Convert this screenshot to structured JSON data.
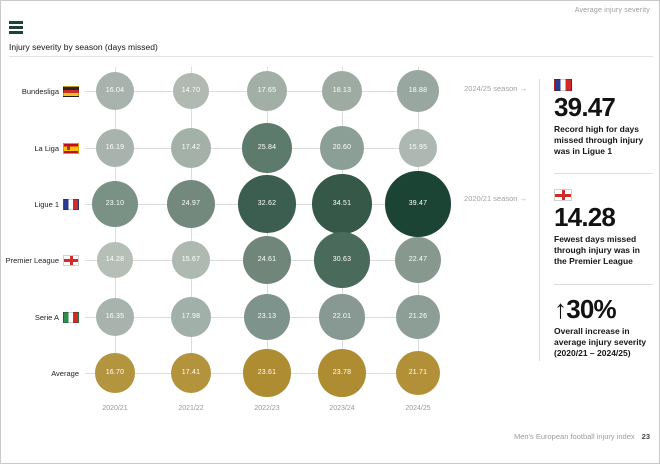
{
  "header": {
    "top_right_label": "Average injury severity",
    "title": "Injury severity by season (days missed)"
  },
  "chart_data": {
    "type": "bubble-matrix",
    "title": "Injury severity by season (days missed)",
    "unit": "days missed",
    "categories": [
      "2020/21",
      "2021/22",
      "2022/23",
      "2023/24",
      "2024/25"
    ],
    "series": [
      {
        "name": "Bundesliga",
        "flag": "de",
        "values": [
          16.04,
          14.7,
          17.65,
          18.13,
          18.88
        ],
        "colors": [
          "#a7b3ac",
          "#b0bab3",
          "#a1afa7",
          "#9daba3",
          "#98a79f"
        ]
      },
      {
        "name": "La Liga",
        "flag": "es",
        "values": [
          16.19,
          17.42,
          25.84,
          20.6,
          15.95
        ],
        "colors": [
          "#a7b3ac",
          "#a3b1a9",
          "#5d7b6c",
          "#8c9f96",
          "#acb8b1"
        ]
      },
      {
        "name": "Ligue 1",
        "flag": "fr",
        "values": [
          23.1,
          24.97,
          32.62,
          34.51,
          39.47
        ],
        "colors": [
          "#7a9185",
          "#73897d",
          "#3c5e50",
          "#355849",
          "#1c4434"
        ]
      },
      {
        "name": "Premier League",
        "flag": "en",
        "values": [
          14.28,
          15.67,
          24.61,
          30.63,
          22.47
        ],
        "colors": [
          "#b5bfb8",
          "#aeb9b2",
          "#70867a",
          "#4a6a5c",
          "#87998f"
        ]
      },
      {
        "name": "Serie A",
        "flag": "it",
        "values": [
          16.35,
          17.98,
          23.13,
          22.01,
          21.26
        ],
        "colors": [
          "#a7b3ac",
          "#a1b0a8",
          "#7e938b",
          "#879992",
          "#8c9e96"
        ]
      },
      {
        "name": "Average",
        "flag": null,
        "values": [
          16.7,
          17.41,
          23.61,
          23.78,
          21.71
        ],
        "colors": [
          "#b4953f",
          "#b3943d",
          "#ae8c31",
          "#ae8c31",
          "#b19038"
        ]
      }
    ]
  },
  "right_panel": {
    "stats": [
      {
        "pointer": "2024/25 season →",
        "flag": "fr",
        "value": "39.47",
        "description": "Record high for days missed through injury was in Ligue 1"
      },
      {
        "pointer": "2020/21 season →",
        "flag": "en",
        "value": "14.28",
        "description": "Fewest days missed through injury was in the Premier League"
      },
      {
        "pointer": "",
        "flag": null,
        "value": "↑30%",
        "description": "Overall increase in average injury severity (2020/21 – 2024/25)"
      }
    ]
  },
  "footer": {
    "label": "Men's European football injury index",
    "page": "23"
  }
}
